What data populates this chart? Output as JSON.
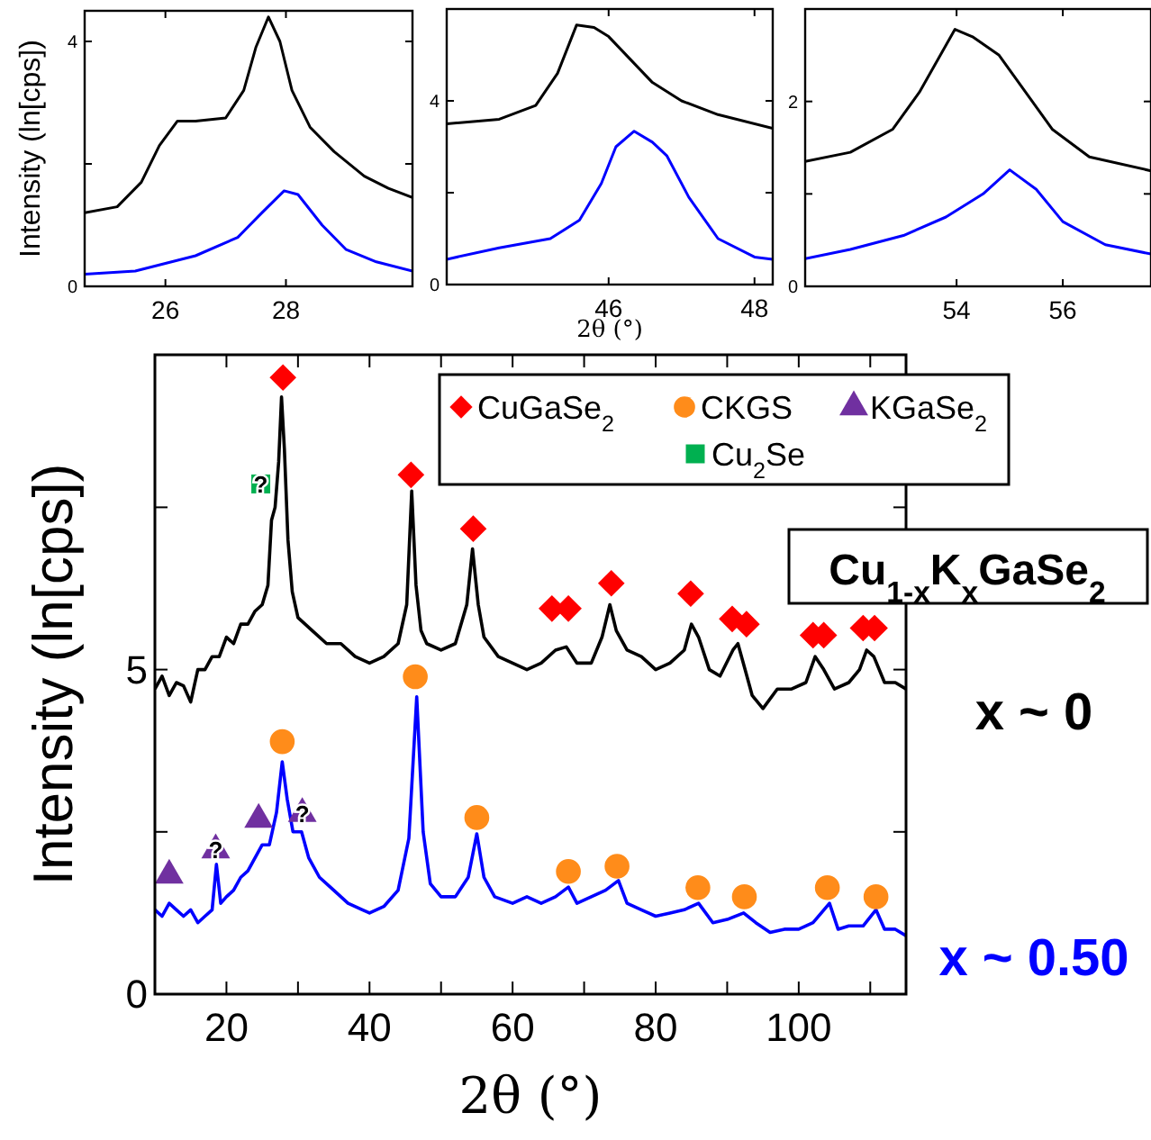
{
  "chart_data": [
    {
      "type": "line",
      "ylabel": "Intensity (ln[cps])",
      "xlim": [
        24.66,
        30.1
      ],
      "ylim": [
        0,
        4.5
      ],
      "xticks": [
        26,
        28
      ],
      "yticks": [
        0,
        {
          "value": 2,
          "label": null
        },
        4
      ],
      "series": [
        {
          "color": "#000000",
          "x": [
            24.66,
            25.2,
            25.6,
            25.9,
            26.2,
            26.5,
            27.0,
            27.3,
            27.5,
            27.71,
            27.9,
            28.1,
            28.4,
            28.8,
            29.3,
            29.7,
            30.1
          ],
          "values": [
            1.2,
            1.3,
            1.7,
            2.3,
            2.7,
            2.7,
            2.75,
            3.2,
            3.9,
            4.4,
            4.0,
            3.2,
            2.6,
            2.2,
            1.8,
            1.6,
            1.45
          ]
        },
        {
          "color": "#0000ff",
          "x": [
            24.66,
            25.5,
            26.5,
            27.2,
            27.6,
            27.97,
            28.2,
            28.6,
            29.0,
            29.5,
            30.1
          ],
          "values": [
            0.2,
            0.25,
            0.5,
            0.8,
            1.2,
            1.56,
            1.5,
            1.0,
            0.6,
            0.4,
            0.25
          ]
        }
      ]
    },
    {
      "type": "line",
      "xlabel": "2θ (°)",
      "xlim": [
        43.78,
        48.25
      ],
      "ylim": [
        0,
        6
      ],
      "xticks": [
        46,
        48
      ],
      "yticks": [
        0,
        {
          "value": 2,
          "label": null
        },
        4
      ],
      "series": [
        {
          "color": "#000000",
          "x": [
            43.78,
            44.5,
            45.0,
            45.3,
            45.56,
            45.8,
            46.0,
            46.3,
            46.6,
            47.0,
            47.5,
            48.25
          ],
          "values": [
            3.5,
            3.6,
            3.9,
            4.6,
            5.65,
            5.6,
            5.4,
            4.9,
            4.4,
            4.0,
            3.7,
            3.4
          ]
        },
        {
          "color": "#0000ff",
          "x": [
            43.78,
            44.5,
            45.2,
            45.6,
            45.9,
            46.1,
            46.35,
            46.6,
            46.8,
            47.1,
            47.5,
            48.0,
            48.25
          ],
          "values": [
            0.55,
            0.8,
            1.0,
            1.4,
            2.2,
            3.0,
            3.34,
            3.1,
            2.8,
            1.9,
            1.0,
            0.6,
            0.55
          ]
        }
      ]
    },
    {
      "type": "line",
      "xlim": [
        51.15,
        57.66
      ],
      "ylim": [
        0,
        3
      ],
      "xticks": [
        54,
        56
      ],
      "yticks": [
        0,
        {
          "value": 1,
          "label": null
        },
        2
      ],
      "series": [
        {
          "color": "#000000",
          "x": [
            51.15,
            52,
            52.8,
            53.3,
            53.97,
            54.3,
            54.8,
            55.3,
            55.8,
            56.5,
            57.66
          ],
          "values": [
            1.35,
            1.45,
            1.7,
            2.1,
            2.78,
            2.7,
            2.5,
            2.1,
            1.7,
            1.4,
            1.25
          ]
        },
        {
          "color": "#0000ff",
          "x": [
            51.15,
            52,
            53,
            53.8,
            54.5,
            55.0,
            55.5,
            56,
            56.8,
            57.66
          ],
          "values": [
            0.3,
            0.4,
            0.55,
            0.75,
            1.0,
            1.26,
            1.05,
            0.7,
            0.45,
            0.35
          ]
        }
      ]
    },
    {
      "type": "line",
      "xlabel": "2θ (°)",
      "ylabel": "Intensity (ln[cps])",
      "xlim": [
        10,
        115
      ],
      "ylim": [
        0,
        9.85
      ],
      "xticks": [
        {
          "value": 10,
          "label": null
        },
        20,
        {
          "value": 30,
          "label": null
        },
        40,
        {
          "value": 50,
          "label": null
        },
        60,
        {
          "value": 70,
          "label": null
        },
        80,
        {
          "value": 90,
          "label": null
        },
        100,
        {
          "value": 110,
          "label": null
        }
      ],
      "yticks": [
        0,
        {
          "value": 2.5,
          "label": null
        },
        5,
        {
          "value": 7.5,
          "label": null
        }
      ],
      "legend": "top right",
      "marker": "none",
      "annotations": [
        "Cu$_{1-x}$K$_{x}$GaSe$_{2}$",
        {
          "text": "?",
          "x": 24.8,
          "y": 7.86
        },
        {
          "text": "?",
          "x": 18.5,
          "y": 2.22
        },
        {
          "text": "?",
          "x": 30.6,
          "y": 2.78
        }
      ],
      "series": [
        {
          "name": "x ~ 0",
          "color": "#000000",
          "x": [
            10,
            11,
            12,
            13,
            14,
            15,
            16,
            17,
            18,
            19,
            20,
            21,
            22,
            23,
            24,
            25,
            25.8,
            26.3,
            26.8,
            27.3,
            27.7,
            28.1,
            28.6,
            29.2,
            30,
            32,
            34,
            36,
            38,
            40,
            42,
            44,
            45.2,
            45.9,
            46.5,
            47.2,
            48,
            50,
            52,
            53.6,
            54.4,
            55.2,
            56,
            58,
            60,
            62,
            64,
            66,
            67.5,
            69,
            71,
            72.5,
            73.6,
            74.5,
            76,
            78,
            80,
            82,
            84,
            85,
            86,
            87.5,
            89,
            90.8,
            91.5,
            92.5,
            93.5,
            95,
            97,
            99,
            101,
            102.3,
            103.5,
            105,
            107,
            108.5,
            109.5,
            110.5,
            112,
            113.5,
            115
          ],
          "values": [
            4.7,
            4.9,
            4.6,
            4.8,
            4.75,
            4.5,
            5.0,
            5.0,
            5.2,
            5.2,
            5.5,
            5.4,
            5.7,
            5.7,
            5.9,
            6.0,
            6.3,
            7.3,
            7.5,
            8.2,
            9.2,
            8.4,
            7.0,
            6.2,
            5.8,
            5.6,
            5.4,
            5.4,
            5.2,
            5.1,
            5.2,
            5.4,
            6.0,
            7.75,
            6.3,
            5.6,
            5.4,
            5.3,
            5.4,
            6.0,
            6.86,
            6.0,
            5.5,
            5.2,
            5.1,
            5.0,
            5.1,
            5.3,
            5.35,
            5.1,
            5.1,
            5.5,
            6.0,
            5.6,
            5.3,
            5.2,
            5.0,
            5.1,
            5.3,
            5.7,
            5.5,
            5.0,
            4.9,
            5.3,
            5.4,
            5.0,
            4.6,
            4.4,
            4.7,
            4.7,
            4.8,
            5.2,
            5.0,
            4.7,
            4.8,
            5.0,
            5.3,
            5.2,
            4.8,
            4.8,
            4.7
          ]
        },
        {
          "name": "x ~ 0.50",
          "color": "#0000ff",
          "x": [
            10,
            11,
            12,
            13,
            14,
            15,
            16,
            17,
            18,
            18.6,
            19.2,
            20,
            21,
            22,
            23,
            24,
            25,
            26,
            27,
            27.8,
            28.5,
            29.3,
            30.5,
            31.5,
            33,
            35,
            37,
            39,
            40,
            42,
            44,
            45.5,
            46.6,
            47.5,
            48.5,
            50,
            52,
            53.8,
            55,
            56,
            57.5,
            60,
            62,
            64,
            66,
            67.8,
            69,
            71,
            73,
            74.8,
            76,
            78,
            80,
            82,
            84,
            86,
            88,
            90,
            92.3,
            94,
            96,
            98,
            100,
            102,
            104.3,
            105.5,
            107,
            109,
            110.8,
            112,
            113.5,
            115
          ],
          "values": [
            1.3,
            1.2,
            1.4,
            1.3,
            1.2,
            1.3,
            1.1,
            1.2,
            1.3,
            2.0,
            1.4,
            1.5,
            1.6,
            1.8,
            1.9,
            2.1,
            2.3,
            2.3,
            2.8,
            3.58,
            3.0,
            2.5,
            2.5,
            2.1,
            1.8,
            1.6,
            1.4,
            1.3,
            1.25,
            1.35,
            1.6,
            2.4,
            4.58,
            2.5,
            1.7,
            1.5,
            1.5,
            1.8,
            2.47,
            1.8,
            1.5,
            1.4,
            1.5,
            1.4,
            1.5,
            1.65,
            1.4,
            1.5,
            1.6,
            1.75,
            1.4,
            1.3,
            1.2,
            1.25,
            1.3,
            1.4,
            1.1,
            1.15,
            1.25,
            1.1,
            0.95,
            1.0,
            1.0,
            1.1,
            1.4,
            1.0,
            1.05,
            1.05,
            1.3,
            1.0,
            1.0,
            0.9
          ]
        },
        {
          "name": "CuGaSe$_{2}$",
          "type": "scatter",
          "marker": "diamond",
          "color": "#ff0000",
          "x": [
            27.9,
            45.8,
            54.5,
            65.5,
            67.8,
            73.8,
            84.9,
            90.7,
            92.7,
            102,
            103.5,
            109,
            110.6
          ],
          "values": [
            9.5,
            8.0,
            7.17,
            5.94,
            5.94,
            6.33,
            6.17,
            5.78,
            5.7,
            5.53,
            5.53,
            5.64,
            5.64
          ]
        },
        {
          "name": "CKGS",
          "type": "scatter",
          "marker": "circle",
          "color": "#ff8c1a",
          "x": [
            27.8,
            46.4,
            55.0,
            67.8,
            74.6,
            85.9,
            92.4,
            104,
            110.8
          ],
          "values": [
            3.89,
            4.89,
            2.72,
            1.89,
            1.97,
            1.64,
            1.5,
            1.64,
            1.5
          ]
        },
        {
          "name": "KGaSe$_{2}$",
          "type": "scatter",
          "marker": "triangle",
          "color": "#7030a0",
          "x": [
            12.0,
            18.5,
            24.5,
            30.6
          ],
          "values": [
            1.83,
            2.22,
            2.69,
            2.78
          ]
        },
        {
          "name": "Cu$_{2}$Se",
          "type": "scatter",
          "marker": "square",
          "color": "#00b050",
          "x": [
            24.8
          ],
          "values": [
            7.86
          ]
        }
      ]
    }
  ]
}
